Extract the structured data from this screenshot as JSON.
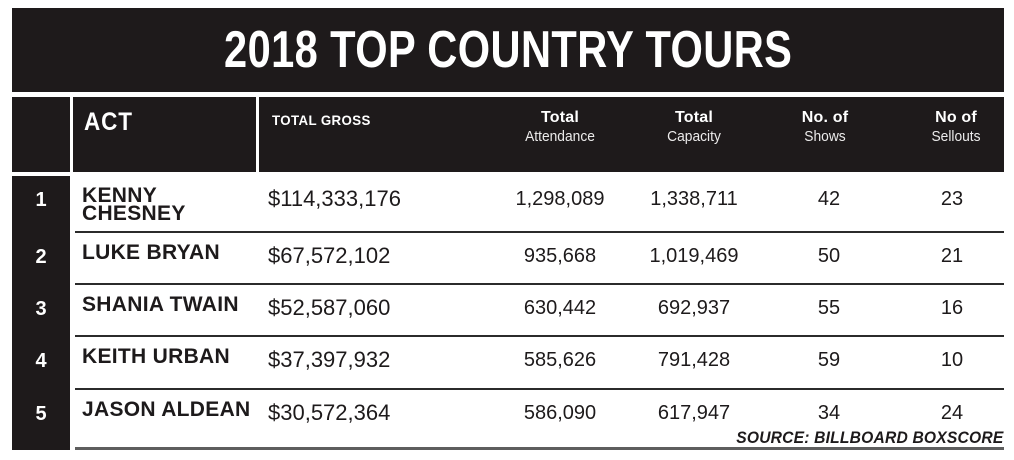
{
  "title": "2018 TOP COUNTRY TOURS",
  "source": "SOURCE: BILLBOARD BOXSCORE",
  "colors": {
    "bar_black": "#1e1a1b",
    "text_black": "#1d1a1b",
    "row_separator": "#2b2b2b",
    "bottom_rule": "#5e5e5e",
    "header_text": "#ffffff"
  },
  "chart_data": {
    "type": "table",
    "title": "2018 TOP COUNTRY TOURS",
    "columns": {
      "rank": "",
      "act": "ACT",
      "gross": "TOTAL GROSS",
      "attendance": {
        "line1": "Total",
        "line2": "Attendance"
      },
      "capacity": {
        "line1": "Total",
        "line2": "Capacity"
      },
      "shows": {
        "line1": "No. of",
        "line2": "Shows"
      },
      "sellouts": {
        "line1": "No of",
        "line2": "Sellouts"
      }
    },
    "rows": [
      {
        "rank": "1",
        "act": "KENNY\nCHESNEY",
        "gross": "$114,333,176",
        "attendance": "1,298,089",
        "capacity": "1,338,711",
        "shows": "42",
        "sellouts": "23"
      },
      {
        "rank": "2",
        "act": "LUKE BRYAN",
        "gross": "$67,572,102",
        "attendance": "935,668",
        "capacity": "1,019,469",
        "shows": "50",
        "sellouts": "21"
      },
      {
        "rank": "3",
        "act": "SHANIA TWAIN",
        "gross": "$52,587,060",
        "attendance": "630,442",
        "capacity": "692,937",
        "shows": "55",
        "sellouts": "16"
      },
      {
        "rank": "4",
        "act": "KEITH URBAN",
        "gross": "$37,397,932",
        "attendance": "585,626",
        "capacity": "791,428",
        "shows": "59",
        "sellouts": "10"
      },
      {
        "rank": "5",
        "act": "JASON ALDEAN",
        "gross": "$30,572,364",
        "attendance": "586,090",
        "capacity": "617,947",
        "shows": "34",
        "sellouts": "24"
      }
    ]
  }
}
